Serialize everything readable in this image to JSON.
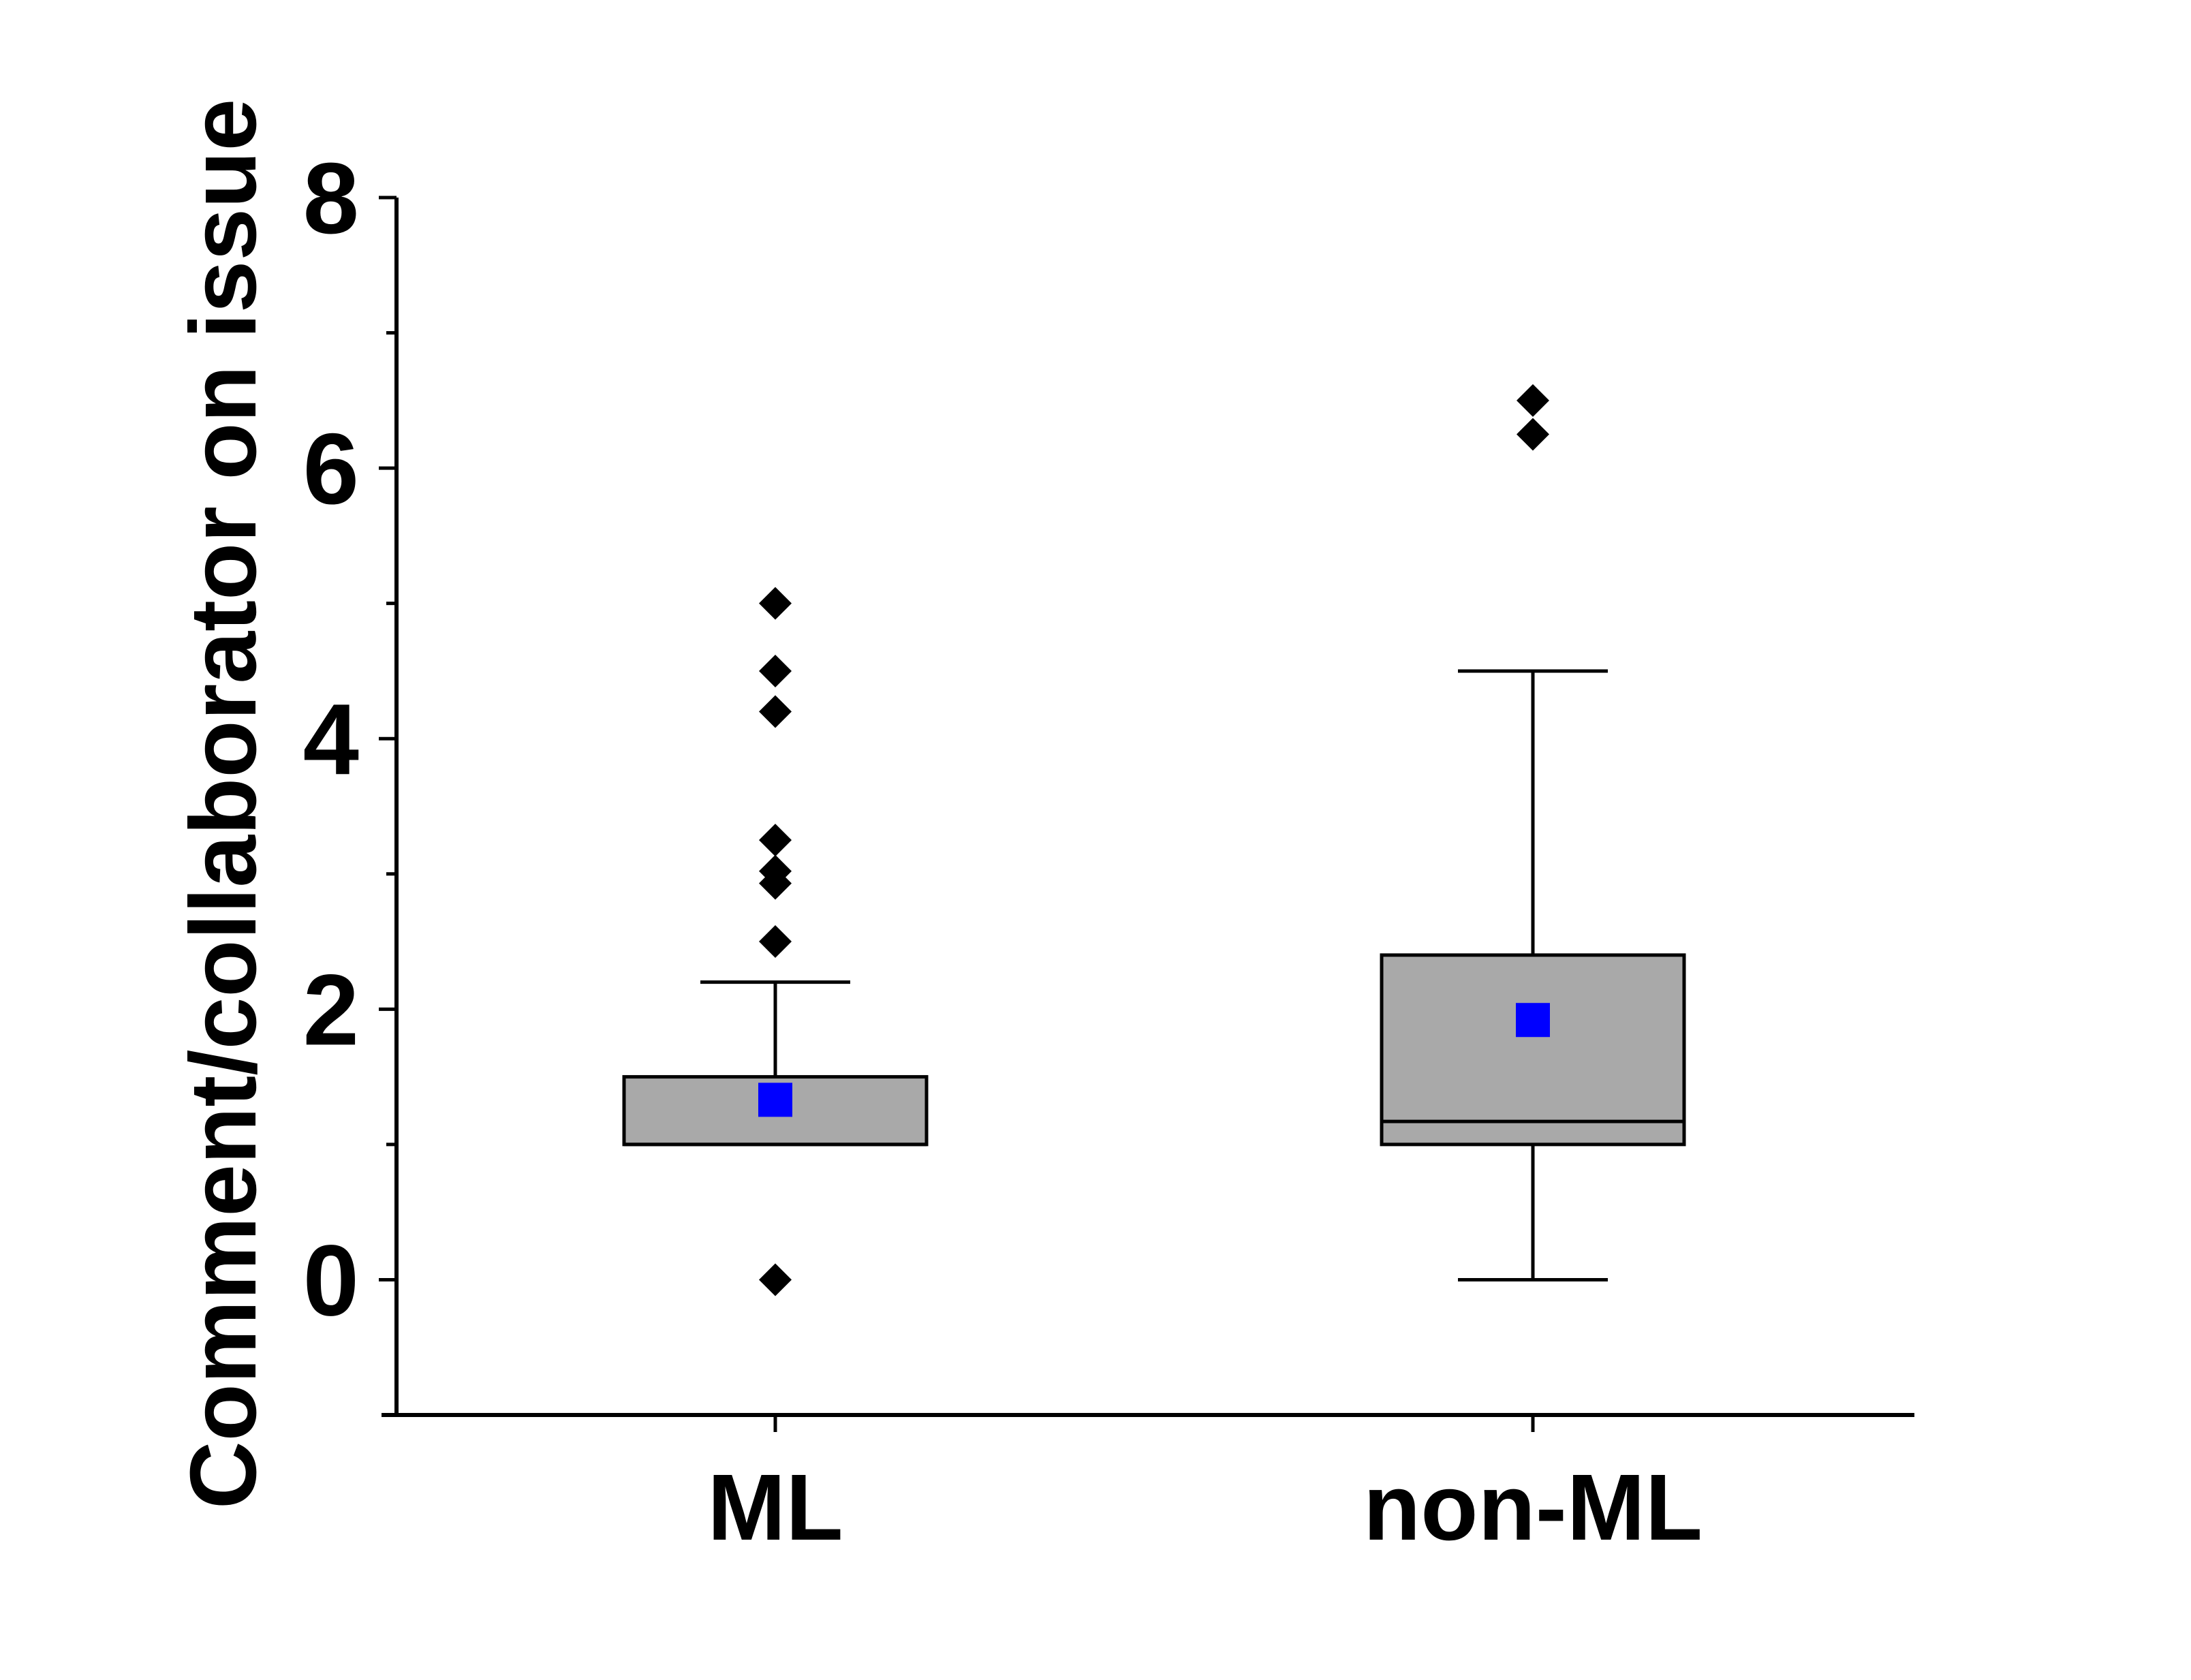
{
  "chart_data": {
    "type": "box",
    "ylabel": "Comment/collaborator on issue",
    "xlabel": "",
    "ylim": [
      -1,
      8
    ],
    "yticks_major": [
      0,
      2,
      4,
      6,
      8
    ],
    "yticks_minor": [
      -1,
      1,
      3,
      5,
      7
    ],
    "categories": [
      "ML",
      "non-ML"
    ],
    "grid": false,
    "legend": "none",
    "box_fill": "#a9a9a9",
    "mean_color": "#0000ff",
    "outlier_color": "#000000",
    "series": [
      {
        "category": "ML",
        "q1": 1.0,
        "median": 1.0,
        "q3": 1.5,
        "whisker_low": 1.0,
        "whisker_high": 2.2,
        "mean": 1.33,
        "outliers": [
          0,
          2.5,
          2.93,
          3.02,
          3.25,
          4.2,
          4.5,
          5.0
        ]
      },
      {
        "category": "non-ML",
        "q1": 1.0,
        "median": 1.17,
        "q3": 2.4,
        "whisker_low": 0,
        "whisker_high": 4.5,
        "mean": 1.92,
        "outliers": [
          6.25,
          6.5
        ]
      }
    ]
  }
}
